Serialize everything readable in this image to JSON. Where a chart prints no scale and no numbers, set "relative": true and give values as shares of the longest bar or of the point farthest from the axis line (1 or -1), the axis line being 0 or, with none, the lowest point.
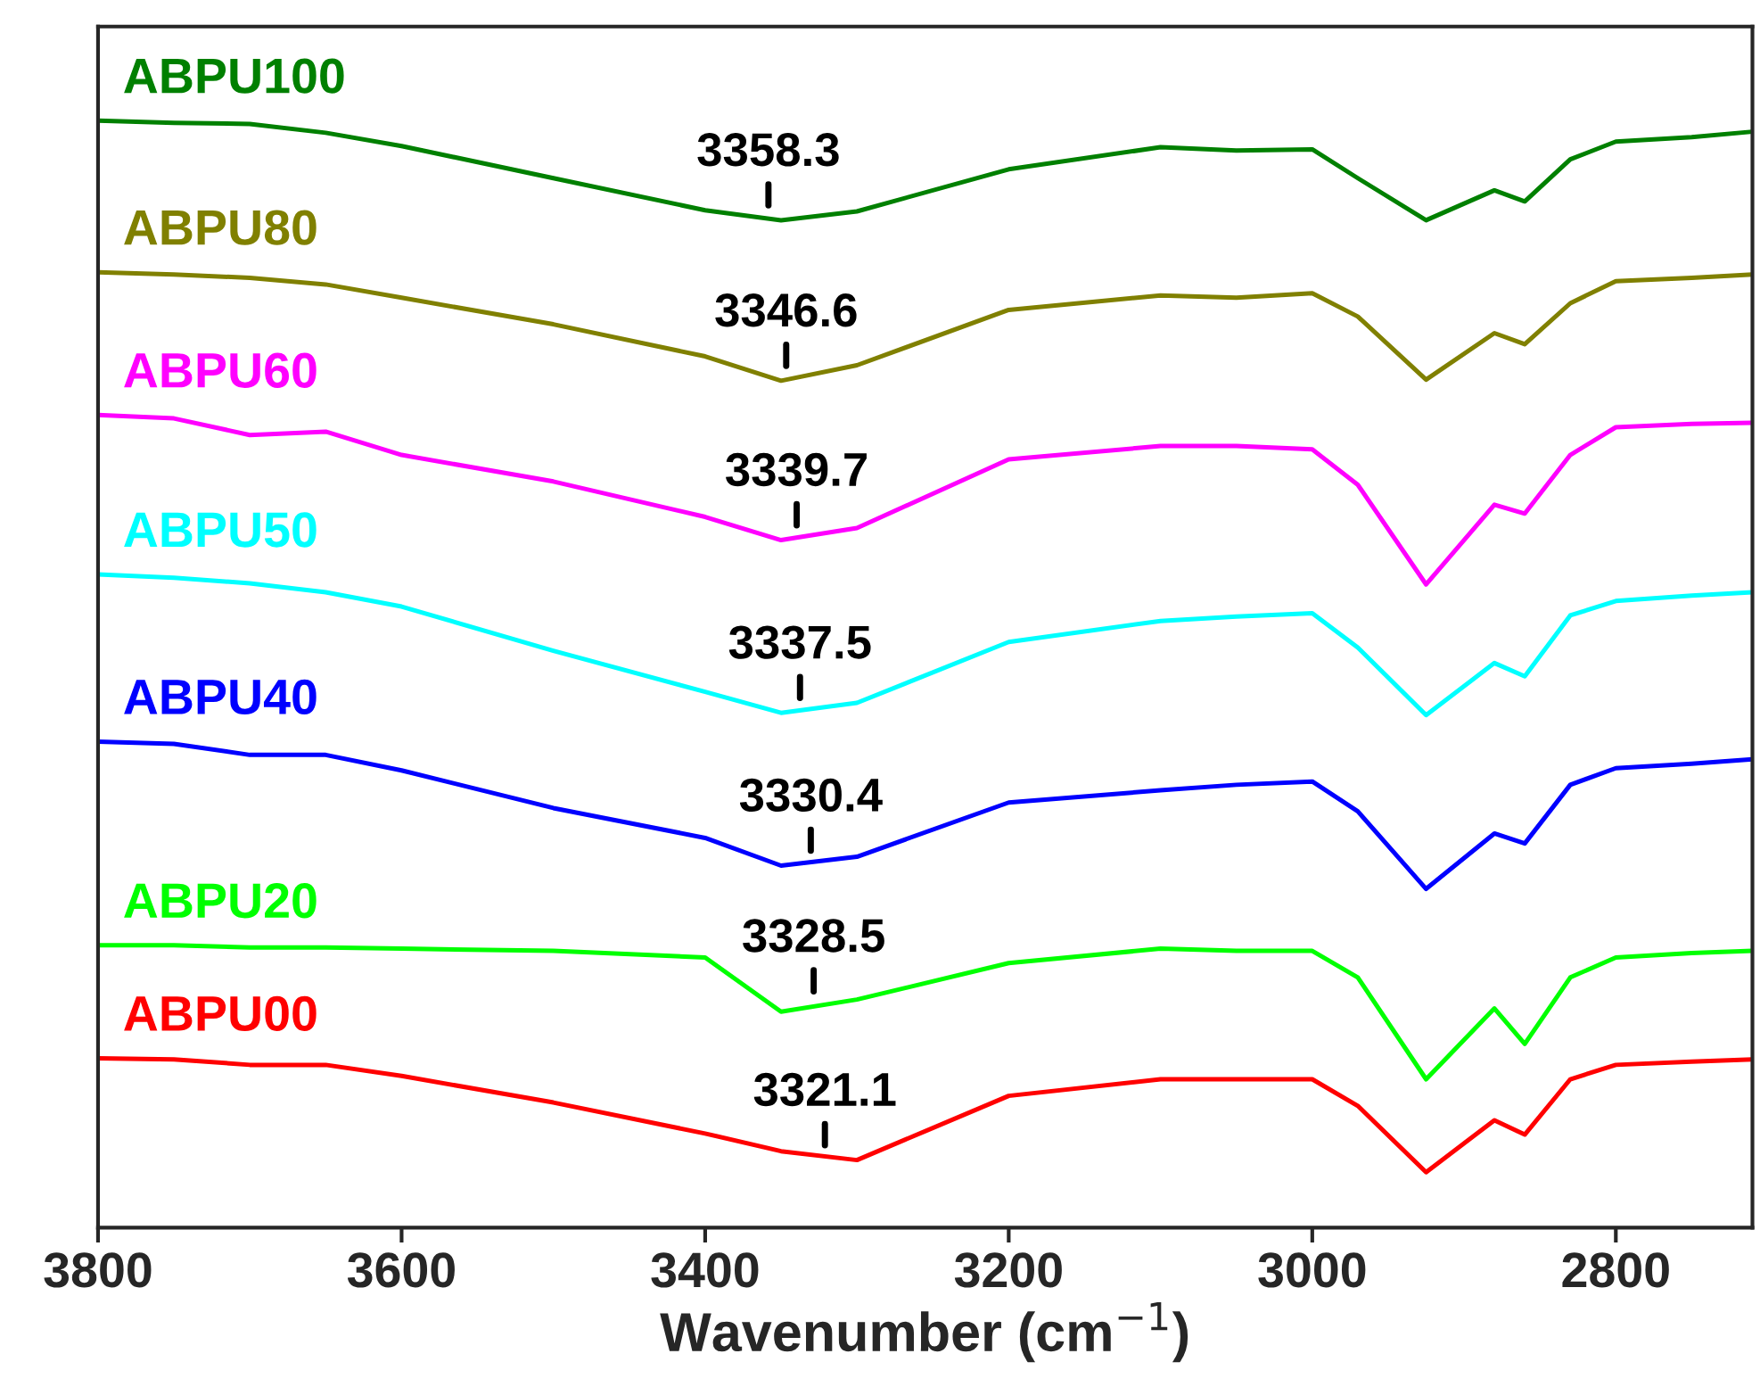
{
  "chart_data": {
    "type": "line",
    "relative": true,
    "xlabel": "Wavenumber (cm$^{−1}$)",
    "x": [
      3800,
      3750,
      3700,
      3650,
      3600,
      3500,
      3400,
      3350,
      3300,
      3200,
      3100,
      3050,
      3000,
      2970,
      2925,
      2880,
      2860,
      2830,
      2800,
      2750,
      2710
    ],
    "xlim": [
      3800,
      2710
    ],
    "xticks": [
      3800,
      3600,
      3400,
      3200,
      3000,
      2800
    ],
    "legend": false,
    "grid": false,
    "line_style": "solid",
    "marker": "none",
    "series": [
      {
        "name": "ABPU100",
        "color": "#008000",
        "values": [
          1.0,
          0.998,
          0.997,
          0.989,
          0.977,
          0.948,
          0.919,
          0.91,
          0.918,
          0.956,
          0.976,
          0.973,
          0.974,
          0.948,
          0.91,
          0.937,
          0.927,
          0.965,
          0.981,
          0.985,
          0.99
        ]
      },
      {
        "name": "ABPU80",
        "color": "#808000",
        "values": [
          0.863,
          0.861,
          0.858,
          0.852,
          0.84,
          0.816,
          0.787,
          0.765,
          0.779,
          0.829,
          0.842,
          0.84,
          0.844,
          0.823,
          0.766,
          0.808,
          0.798,
          0.835,
          0.855,
          0.858,
          0.861
        ]
      },
      {
        "name": "ABPU60",
        "color": "#ff00ff",
        "values": [
          0.734,
          0.731,
          0.716,
          0.719,
          0.698,
          0.674,
          0.642,
          0.621,
          0.632,
          0.694,
          0.706,
          0.706,
          0.703,
          0.671,
          0.581,
          0.653,
          0.645,
          0.698,
          0.723,
          0.726,
          0.727
        ]
      },
      {
        "name": "ABPU50",
        "color": "#00ffff",
        "values": [
          0.59,
          0.587,
          0.582,
          0.574,
          0.561,
          0.521,
          0.484,
          0.465,
          0.474,
          0.529,
          0.548,
          0.552,
          0.555,
          0.524,
          0.463,
          0.51,
          0.498,
          0.553,
          0.566,
          0.571,
          0.574
        ]
      },
      {
        "name": "ABPU40",
        "color": "#0000ff",
        "values": [
          0.439,
          0.437,
          0.427,
          0.427,
          0.413,
          0.379,
          0.352,
          0.327,
          0.335,
          0.384,
          0.395,
          0.4,
          0.403,
          0.376,
          0.306,
          0.356,
          0.347,
          0.4,
          0.415,
          0.419,
          0.423
        ]
      },
      {
        "name": "ABPU20",
        "color": "#00ff00",
        "values": [
          0.255,
          0.255,
          0.253,
          0.253,
          0.252,
          0.25,
          0.244,
          0.195,
          0.206,
          0.239,
          0.252,
          0.25,
          0.25,
          0.226,
          0.134,
          0.198,
          0.166,
          0.226,
          0.244,
          0.248,
          0.25
        ]
      },
      {
        "name": "ABPU00",
        "color": "#ff0000",
        "values": [
          0.153,
          0.152,
          0.147,
          0.147,
          0.137,
          0.113,
          0.085,
          0.069,
          0.061,
          0.119,
          0.134,
          0.134,
          0.134,
          0.11,
          0.05,
          0.097,
          0.084,
          0.134,
          0.147,
          0.15,
          0.152
        ]
      }
    ],
    "annotations": [
      {
        "text": "3358.3",
        "x": 3358.3,
        "y": 0.91
      },
      {
        "text": "3346.6",
        "x": 3346.6,
        "y": 0.765
      },
      {
        "text": "3339.7",
        "x": 3339.7,
        "y": 0.621
      },
      {
        "text": "3337.5",
        "x": 3337.5,
        "y": 0.465
      },
      {
        "text": "3330.4",
        "x": 3330.4,
        "y": 0.327
      },
      {
        "text": "3328.5",
        "x": 3328.5,
        "y": 0.2
      },
      {
        "text": "3321.1",
        "x": 3321.1,
        "y": 0.061
      }
    ]
  }
}
